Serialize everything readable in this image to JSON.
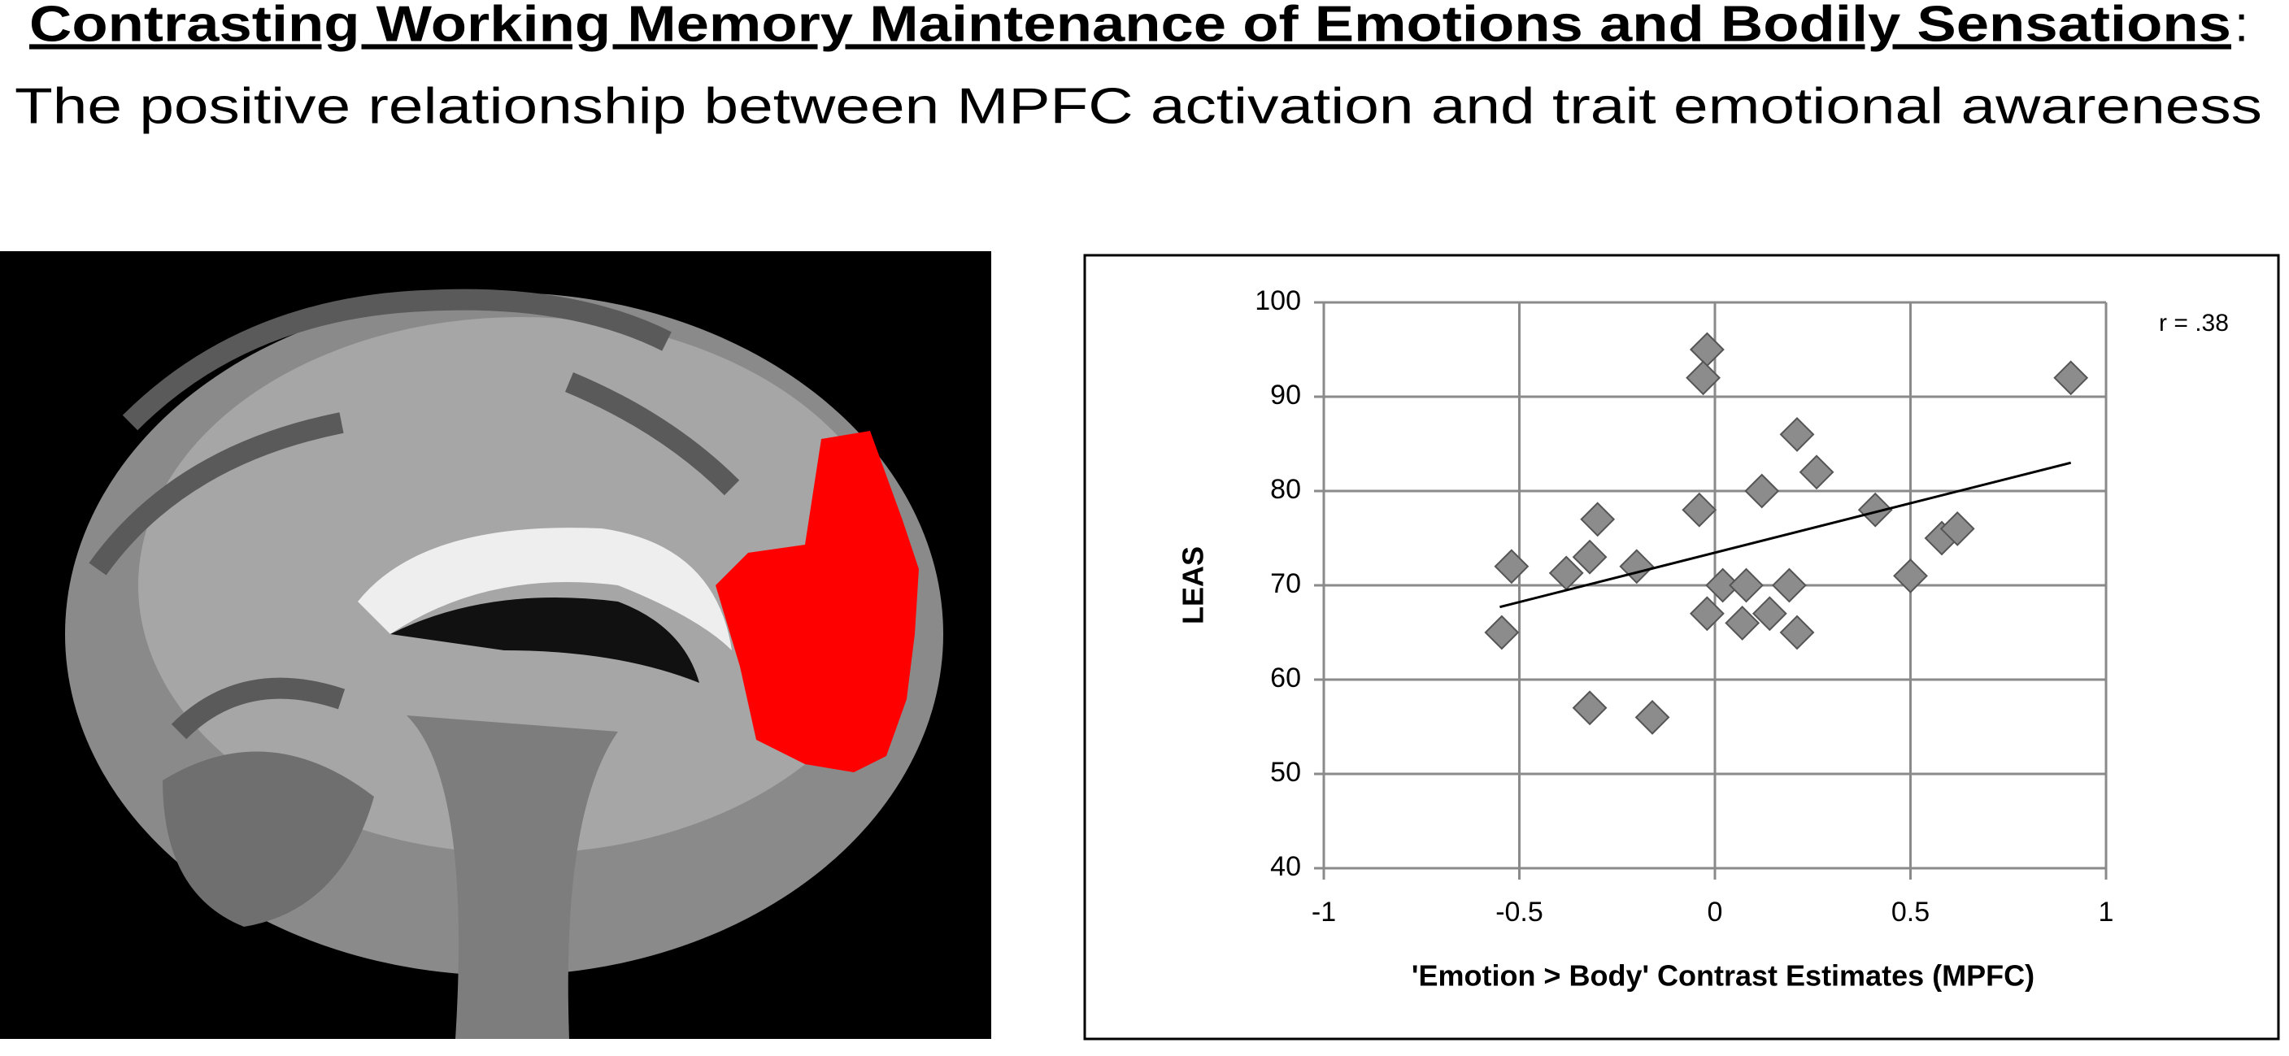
{
  "header": {
    "title": [
      "Contrasting Working Memory Maintenance of Emotions and Bodily Sensations",
      ":"
    ],
    "subtitle": "The positive relationship between MPFC activation and trait emotional awareness"
  },
  "chart_data": {
    "type": "scatter",
    "x_label": "'Emotion > Body' Contrast Estimates (MPFC)",
    "y_label": "LEAS",
    "annotation": "r = .38",
    "color": "#8c8c8c",
    "grid": true,
    "xlim": [
      -1,
      1
    ],
    "ylim": [
      40,
      100
    ],
    "xticks": [
      -1,
      -0.5,
      0,
      0.5,
      1
    ],
    "yticks": [
      40,
      50,
      60,
      70,
      80,
      90,
      100
    ],
    "x": [
      -0.545,
      -0.52,
      -0.38,
      -0.32,
      -0.3,
      -0.32,
      -0.2,
      -0.16,
      -0.02,
      -0.03,
      -0.04,
      -0.02,
      0.02,
      0.08,
      0.07,
      0.12,
      0.14,
      0.19,
      0.21,
      0.21,
      0.26,
      0.41,
      0.5,
      0.58,
      0.62,
      0.91
    ],
    "values": [
      65,
      72,
      71.3,
      73,
      77,
      57,
      72,
      56,
      95,
      92,
      78,
      67,
      70,
      70,
      66,
      80,
      67,
      70,
      65,
      86,
      82,
      78,
      71,
      75,
      76,
      92
    ],
    "trendline": {
      "x": [
        -0.55,
        0.91
      ],
      "y": [
        67.7,
        83
      ]
    }
  }
}
